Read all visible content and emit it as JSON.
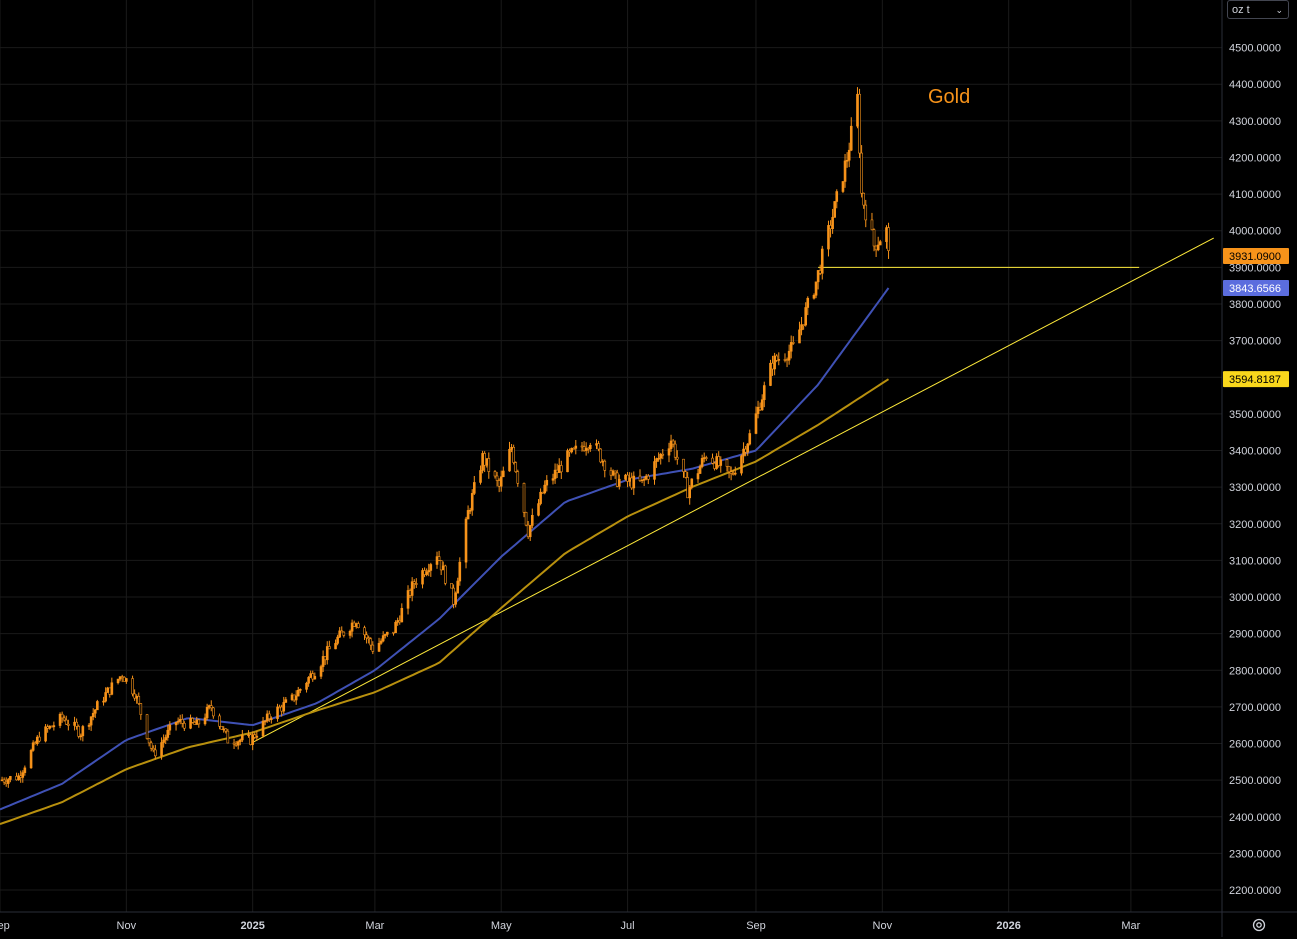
{
  "unit_selector": {
    "value": "oz t",
    "chevron_icon": "chevron-down-icon"
  },
  "settings_icon": "gear-icon",
  "colors": {
    "background": "#000000",
    "grid": "#1a1a1a",
    "axis_text": "#d1d4dc",
    "candle": "#f7931a",
    "ma_blue": "#3f51b5",
    "ma_gold": "#b8900e",
    "trendline": "#ffeb3b",
    "label_orange": "#f7931a",
    "label_blue": "#5b6dde",
    "label_gold": "#f9d71c"
  },
  "chart_data": {
    "type": "line",
    "title": "Gold",
    "y_axis": {
      "range": [
        2140,
        4630
      ],
      "ticks": [
        "4500.0000",
        "4400.0000",
        "4300.0000",
        "4200.0000",
        "4100.0000",
        "4000.0000",
        "3900.0000",
        "3800.0000",
        "3700.0000",
        "3600.0000",
        "3500.0000",
        "3400.0000",
        "3300.0000",
        "3200.0000",
        "3100.0000",
        "3000.0000",
        "2900.0000",
        "2800.0000",
        "2700.0000",
        "2600.0000",
        "2500.0000",
        "2400.0000",
        "2300.0000",
        "2200.0000"
      ],
      "tick_values": [
        4500,
        4400,
        4300,
        4200,
        4100,
        4000,
        3900,
        3800,
        3700,
        3600,
        3500,
        3400,
        3300,
        3200,
        3100,
        3000,
        2900,
        2800,
        2700,
        2600,
        2500,
        2400,
        2300,
        2200
      ]
    },
    "x_axis": {
      "range": [
        "2024-09-01",
        "2026-04-14"
      ],
      "ticks": [
        {
          "label": "Sep",
          "date": "2024-09-01",
          "bold": false
        },
        {
          "label": "Nov",
          "date": "2024-11-01",
          "bold": false
        },
        {
          "label": "2025",
          "date": "2025-01-01",
          "bold": true
        },
        {
          "label": "Mar",
          "date": "2025-03-01",
          "bold": false
        },
        {
          "label": "May",
          "date": "2025-05-01",
          "bold": false
        },
        {
          "label": "Jul",
          "date": "2025-07-01",
          "bold": false
        },
        {
          "label": "Sep",
          "date": "2025-09-01",
          "bold": false
        },
        {
          "label": "Nov",
          "date": "2025-11-01",
          "bold": false
        },
        {
          "label": "2026",
          "date": "2026-01-01",
          "bold": true
        },
        {
          "label": "Mar",
          "date": "2026-03-01",
          "bold": false
        }
      ]
    },
    "grid": true,
    "series": [
      {
        "kind": "candles",
        "points": [
          {
            "date": "2024-09-01",
            "close": 2500
          },
          {
            "date": "2024-09-10",
            "close": 2510
          },
          {
            "date": "2024-09-20",
            "close": 2620
          },
          {
            "date": "2024-10-01",
            "close": 2670
          },
          {
            "date": "2024-10-10",
            "close": 2630
          },
          {
            "date": "2024-10-20",
            "close": 2720
          },
          {
            "date": "2024-10-30",
            "close": 2790
          },
          {
            "date": "2024-11-05",
            "close": 2740
          },
          {
            "date": "2024-11-14",
            "close": 2570
          },
          {
            "date": "2024-11-25",
            "close": 2660
          },
          {
            "date": "2024-12-05",
            "close": 2650
          },
          {
            "date": "2024-12-12",
            "close": 2700
          },
          {
            "date": "2024-12-20",
            "close": 2610
          },
          {
            "date": "2024-12-31",
            "close": 2610
          },
          {
            "date": "2025-01-10",
            "close": 2680
          },
          {
            "date": "2025-01-20",
            "close": 2720
          },
          {
            "date": "2025-01-31",
            "close": 2800
          },
          {
            "date": "2025-02-10",
            "close": 2880
          },
          {
            "date": "2025-02-20",
            "close": 2940
          },
          {
            "date": "2025-02-28",
            "close": 2860
          },
          {
            "date": "2025-03-10",
            "close": 2910
          },
          {
            "date": "2025-03-20",
            "close": 3040
          },
          {
            "date": "2025-03-31",
            "close": 3120
          },
          {
            "date": "2025-04-08",
            "close": 2990
          },
          {
            "date": "2025-04-15",
            "close": 3230
          },
          {
            "date": "2025-04-22",
            "close": 3380
          },
          {
            "date": "2025-04-30",
            "close": 3300
          },
          {
            "date": "2025-05-06",
            "close": 3410
          },
          {
            "date": "2025-05-14",
            "close": 3180
          },
          {
            "date": "2025-05-22",
            "close": 3300
          },
          {
            "date": "2025-06-02",
            "close": 3380
          },
          {
            "date": "2025-06-13",
            "close": 3430
          },
          {
            "date": "2025-06-25",
            "close": 3320
          },
          {
            "date": "2025-07-08",
            "close": 3310
          },
          {
            "date": "2025-07-22",
            "close": 3430
          },
          {
            "date": "2025-07-30",
            "close": 3290
          },
          {
            "date": "2025-08-08",
            "close": 3390
          },
          {
            "date": "2025-08-20",
            "close": 3330
          },
          {
            "date": "2025-08-29",
            "close": 3440
          },
          {
            "date": "2025-09-09",
            "close": 3640
          },
          {
            "date": "2025-09-19",
            "close": 3680
          },
          {
            "date": "2025-09-30",
            "close": 3860
          },
          {
            "date": "2025-10-08",
            "close": 4040
          },
          {
            "date": "2025-10-15",
            "close": 4200
          },
          {
            "date": "2025-10-20",
            "close": 4360
          },
          {
            "date": "2025-10-22",
            "close": 4100
          },
          {
            "date": "2025-10-28",
            "close": 3960
          },
          {
            "date": "2025-11-03",
            "close": 4000
          },
          {
            "date": "2025-11-04",
            "close": 3931.09
          }
        ],
        "last_value": "3931.0900"
      },
      {
        "kind": "line",
        "role": "moving-average-blue",
        "points": [
          {
            "date": "2024-09-01",
            "value": 2420
          },
          {
            "date": "2024-10-01",
            "value": 2490
          },
          {
            "date": "2024-11-01",
            "value": 2610
          },
          {
            "date": "2024-12-01",
            "value": 2670
          },
          {
            "date": "2025-01-01",
            "value": 2650
          },
          {
            "date": "2025-02-01",
            "value": 2710
          },
          {
            "date": "2025-03-01",
            "value": 2800
          },
          {
            "date": "2025-04-01",
            "value": 2940
          },
          {
            "date": "2025-05-01",
            "value": 3110
          },
          {
            "date": "2025-06-01",
            "value": 3260
          },
          {
            "date": "2025-07-01",
            "value": 3320
          },
          {
            "date": "2025-08-01",
            "value": 3350
          },
          {
            "date": "2025-09-01",
            "value": 3400
          },
          {
            "date": "2025-10-01",
            "value": 3580
          },
          {
            "date": "2025-11-04",
            "value": 3843.6566
          }
        ],
        "last_value": "3843.6566"
      },
      {
        "kind": "line",
        "role": "moving-average-gold",
        "points": [
          {
            "date": "2024-09-01",
            "value": 2380
          },
          {
            "date": "2024-10-01",
            "value": 2440
          },
          {
            "date": "2024-11-01",
            "value": 2530
          },
          {
            "date": "2024-12-01",
            "value": 2590
          },
          {
            "date": "2025-01-01",
            "value": 2630
          },
          {
            "date": "2025-02-01",
            "value": 2690
          },
          {
            "date": "2025-03-01",
            "value": 2740
          },
          {
            "date": "2025-04-01",
            "value": 2820
          },
          {
            "date": "2025-05-01",
            "value": 2970
          },
          {
            "date": "2025-06-01",
            "value": 3120
          },
          {
            "date": "2025-07-01",
            "value": 3220
          },
          {
            "date": "2025-08-01",
            "value": 3300
          },
          {
            "date": "2025-09-01",
            "value": 3370
          },
          {
            "date": "2025-10-01",
            "value": 3470
          },
          {
            "date": "2025-11-04",
            "value": 3594.8187
          }
        ],
        "last_value": "3594.8187"
      }
    ],
    "annotations": [
      {
        "kind": "trendline",
        "from": {
          "date": "2024-12-31",
          "value": 2600
        },
        "to": {
          "date": "2026-04-10",
          "value": 3980
        }
      },
      {
        "kind": "horizontal-segment",
        "from": {
          "date": "2025-10-01",
          "value": 3900
        },
        "to": {
          "date": "2026-03-05",
          "value": 3900
        }
      }
    ]
  }
}
